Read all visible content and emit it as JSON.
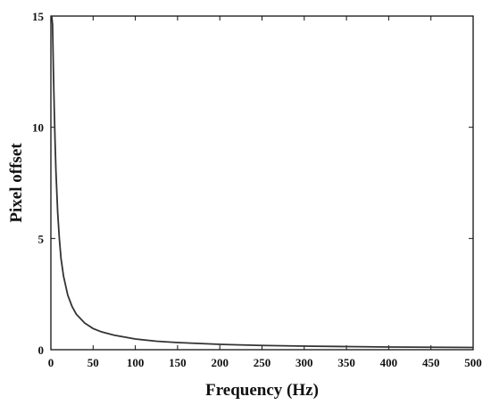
{
  "chart_data": {
    "type": "line",
    "title": "",
    "xlabel": "Frequency (Hz)",
    "ylabel": "Pixel offset",
    "xlim": [
      0,
      500
    ],
    "ylim": [
      0,
      15
    ],
    "x_ticks": [
      0,
      50,
      100,
      150,
      200,
      250,
      300,
      350,
      400,
      450,
      500
    ],
    "x_tick_labels": [
      "0",
      "50",
      "100",
      "150",
      "200",
      "250",
      "300",
      "350",
      "400",
      "450",
      "500"
    ],
    "y_ticks": [
      0,
      5,
      10,
      15
    ],
    "y_tick_labels": [
      "0",
      "5",
      "10",
      "15"
    ],
    "grid": false,
    "legend": "none",
    "line_color": "#333333",
    "series": [
      {
        "x": [
          1,
          2,
          3,
          4,
          5,
          6,
          8,
          10,
          12,
          15,
          20,
          25,
          30,
          40,
          50,
          60,
          75,
          100,
          125,
          150,
          200,
          250,
          300,
          350,
          400,
          450,
          500
        ],
        "y": [
          15,
          14.6,
          12.5,
          10.8,
          9.3,
          8.0,
          6.2,
          5.0,
          4.1,
          3.3,
          2.45,
          1.95,
          1.6,
          1.2,
          0.95,
          0.8,
          0.65,
          0.48,
          0.38,
          0.32,
          0.24,
          0.19,
          0.16,
          0.14,
          0.12,
          0.11,
          0.1
        ]
      }
    ]
  }
}
